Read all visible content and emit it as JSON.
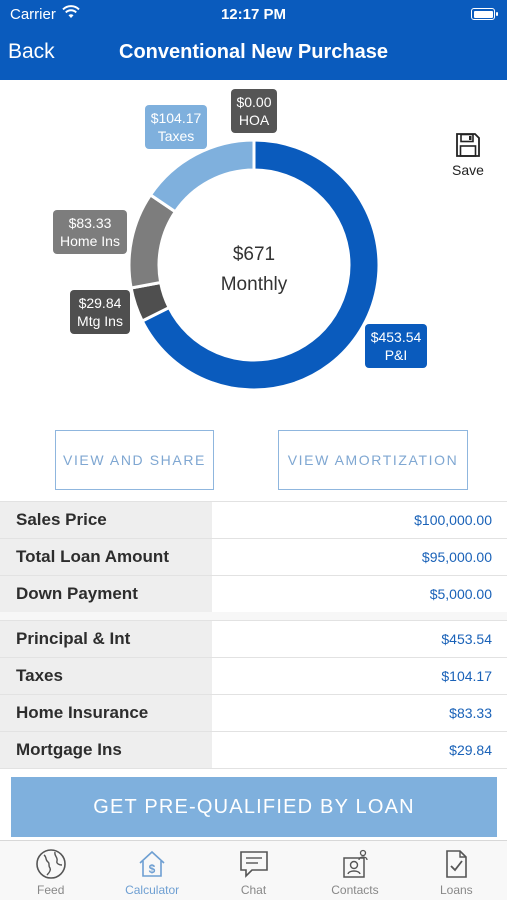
{
  "status_bar": {
    "carrier": "Carrier",
    "time": "12:17 PM"
  },
  "nav": {
    "back_label": "Back",
    "title": "Conventional New Purchase"
  },
  "chart_data": {
    "type": "pie",
    "center_value": "$671",
    "center_label": "Monthly",
    "slices": [
      {
        "label": "P&I",
        "value_text": "$453.54",
        "value": 453.54,
        "color": "#0a5bbd"
      },
      {
        "label": "Mtg Ins",
        "value_text": "$29.84",
        "value": 29.84,
        "color": "#4f4f4f"
      },
      {
        "label": "Home Ins",
        "value_text": "$83.33",
        "value": 83.33,
        "color": "#7d7d7d"
      },
      {
        "label": "Taxes",
        "value_text": "$104.17",
        "value": 104.17,
        "color": "#7fb0dd"
      },
      {
        "label": "HOA",
        "value_text": "$0.00",
        "value": 0.0,
        "color": "#555555"
      }
    ]
  },
  "save": {
    "label": "Save"
  },
  "actions": {
    "share_label": "VIEW AND SHARE",
    "amortization_label": "VIEW AMORTIZATION"
  },
  "loan_summary": [
    {
      "label": "Sales Price",
      "value": "$100,000.00"
    },
    {
      "label": "Total Loan Amount",
      "value": "$95,000.00"
    },
    {
      "label": "Down Payment",
      "value": "$5,000.00"
    }
  ],
  "payment_breakdown": [
    {
      "label": "Principal & Int",
      "value": "$453.54"
    },
    {
      "label": "Taxes",
      "value": "$104.17"
    },
    {
      "label": "Home Insurance",
      "value": "$83.33"
    },
    {
      "label": "Mortgage Ins",
      "value": "$29.84"
    }
  ],
  "cta": {
    "label": "GET PRE-QUALIFIED BY LOAN"
  },
  "tabs": [
    {
      "label": "Feed",
      "icon": "globe-icon",
      "active": false
    },
    {
      "label": "Calculator",
      "icon": "calculator-house-icon",
      "active": true
    },
    {
      "label": "Chat",
      "icon": "chat-bubble-icon",
      "active": false
    },
    {
      "label": "Contacts",
      "icon": "contacts-icon",
      "active": false
    },
    {
      "label": "Loans",
      "icon": "document-check-icon",
      "active": false
    }
  ]
}
